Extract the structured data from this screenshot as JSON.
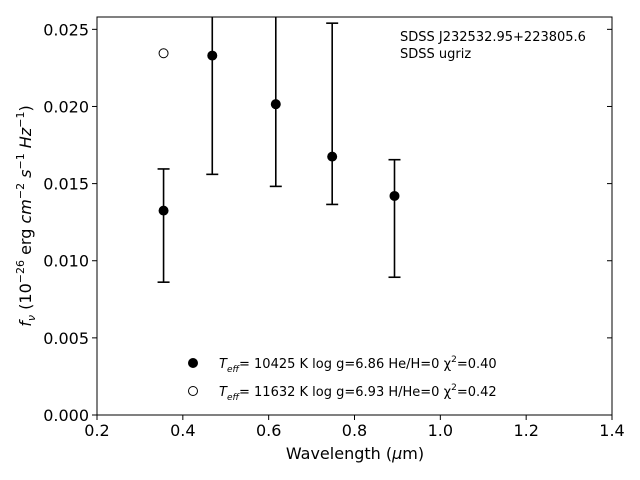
{
  "chart_data": {
    "type": "scatter",
    "xlabel": "Wavelength (μm)",
    "ylabel": "f_ν (10^-26 erg cm^-2 s^-1 Hz^-1)",
    "xlim": [
      0.2,
      1.4
    ],
    "ylim": [
      0.0,
      0.0258
    ],
    "xticks": [
      "0.2",
      "0.4",
      "0.6",
      "0.8",
      "1.0",
      "1.2",
      "1.4"
    ],
    "yticks": [
      "0.000",
      "0.005",
      "0.010",
      "0.015",
      "0.020",
      "0.025"
    ],
    "annotation": [
      "SDSS J232532.95+223805.6",
      "SDSS ugriz"
    ],
    "observed": [
      {
        "x": 0.3551,
        "y": 0.01325,
        "yerr_low": 0.00861,
        "yerr_high": 0.01595
      },
      {
        "x": 0.4686,
        "y": 0.0233,
        "yerr_low": 0.0156,
        "yerr_high": 0.0285
      },
      {
        "x": 0.6166,
        "y": 0.02015,
        "yerr_low": 0.01482,
        "yerr_high": 0.0285
      },
      {
        "x": 0.748,
        "y": 0.01675,
        "yerr_low": 0.01365,
        "yerr_high": 0.0254
      },
      {
        "x": 0.8932,
        "y": 0.0142,
        "yerr_low": 0.00893,
        "yerr_high": 0.01655
      }
    ],
    "model_points": [
      {
        "x": 0.3551,
        "y": 0.02345
      }
    ],
    "legend": {
      "placement": "lower-center",
      "entries": [
        {
          "marker": "filled-circle",
          "parts": [
            "T",
            "eff",
            "= 10425 K  log g=6.86  He/H=0  χ",
            "2",
            "=0.40"
          ]
        },
        {
          "marker": "open-circle",
          "parts": [
            "T",
            "eff",
            "= 11632 K  log g=6.93  H/He=0  χ",
            "2",
            "=0.42"
          ]
        }
      ]
    }
  }
}
